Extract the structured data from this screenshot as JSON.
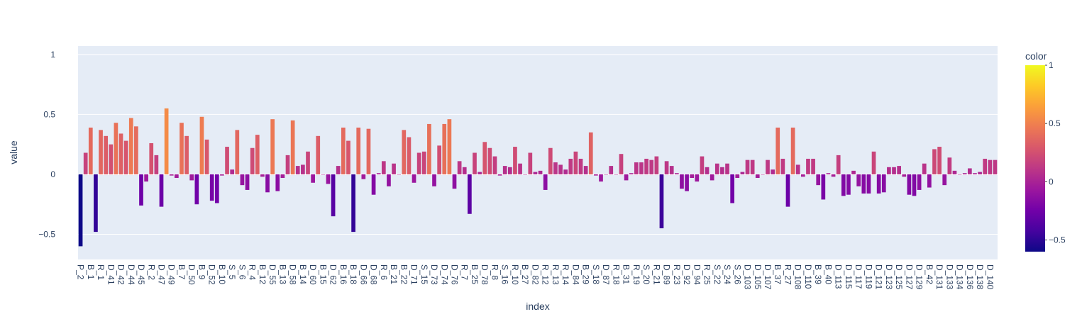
{
  "chart_data": {
    "type": "bar",
    "x_label": "index",
    "y_label": "value",
    "categories": [
      "P_2",
      null,
      "B_1",
      null,
      "R_1",
      null,
      "D_41",
      null,
      "D_42",
      null,
      "D_44",
      null,
      "D_45",
      null,
      "R_2",
      null,
      "D_47",
      null,
      "D_49",
      null,
      "B_7",
      null,
      "D_50",
      null,
      "B_9",
      null,
      "D_52",
      null,
      "B_10",
      null,
      "S_5",
      null,
      "S_6",
      null,
      "R_4",
      null,
      "B_12",
      null,
      "D_55",
      null,
      "B_13",
      null,
      "D_58",
      null,
      "B_14",
      null,
      "D_60",
      null,
      "B_15",
      null,
      "D_62",
      null,
      "B_16",
      null,
      "B_18",
      null,
      "D_66",
      null,
      "D_68",
      null,
      "R_6",
      null,
      "B_21",
      null,
      "B_22",
      null,
      "D_71",
      null,
      "S_15",
      null,
      "D_73",
      null,
      "D_74",
      null,
      "D_76",
      null,
      "R_7",
      null,
      "B_25",
      null,
      "D_78",
      null,
      "R_8",
      null,
      "S_16",
      null,
      "R_10",
      null,
      "B_27",
      null,
      "D_82",
      null,
      "R_12",
      null,
      "R_13",
      null,
      "R_14",
      null,
      "D_84",
      null,
      "B_29",
      null,
      "S_18",
      null,
      "D_87",
      null,
      "R_18",
      null,
      "B_31",
      null,
      "R_19",
      null,
      "S_20",
      null,
      "R_21",
      null,
      "D_89",
      null,
      "R_23",
      null,
      "D_92",
      null,
      "D_94",
      null,
      "R_25",
      null,
      "S_22",
      null,
      "S_24",
      null,
      "S_26",
      null,
      "D_103",
      null,
      "D_105",
      null,
      "D_107",
      null,
      "B_37",
      null,
      "R_27",
      null,
      "D_108",
      null,
      "D_110",
      null,
      "B_39",
      null,
      "B_40",
      null,
      "D_113",
      null,
      "D_115",
      null,
      "D_117",
      null,
      "D_119",
      null,
      "D_121",
      null,
      "D_123",
      null,
      "D_125",
      null,
      "D_127",
      null,
      "D_129",
      null,
      "B_42",
      null,
      "D_131",
      null,
      "D_133",
      null,
      "D_134",
      null,
      "D_136",
      null,
      "D_138",
      null,
      "D_140",
      null
    ],
    "values": [
      -0.6,
      0.18,
      0.39,
      -0.48,
      0.37,
      0.32,
      0.25,
      0.43,
      0.34,
      0.28,
      0.47,
      0.4,
      -0.26,
      -0.06,
      0.26,
      0.16,
      -0.27,
      0.55,
      -0.01,
      -0.03,
      0.43,
      0.32,
      -0.05,
      -0.25,
      0.48,
      0.29,
      -0.22,
      -0.24,
      -0.01,
      0.23,
      0.04,
      0.37,
      -0.09,
      -0.13,
      0.22,
      0.33,
      -0.02,
      -0.15,
      0.46,
      -0.14,
      -0.03,
      0.16,
      0.45,
      0.07,
      0.08,
      0.19,
      -0.07,
      0.32,
      0.0,
      -0.08,
      -0.35,
      0.07,
      0.39,
      0.28,
      -0.48,
      0.39,
      -0.04,
      0.38,
      -0.17,
      0.01,
      0.11,
      -0.1,
      0.09,
      0.0,
      0.37,
      0.31,
      -0.07,
      0.18,
      0.19,
      0.42,
      -0.1,
      0.24,
      0.42,
      0.46,
      -0.12,
      0.11,
      0.06,
      -0.33,
      0.18,
      0.02,
      0.27,
      0.22,
      0.15,
      -0.01,
      0.07,
      0.06,
      0.23,
      0.09,
      0.0,
      0.18,
      0.02,
      0.03,
      -0.13,
      0.22,
      0.1,
      0.08,
      0.04,
      0.13,
      0.19,
      0.13,
      0.07,
      0.35,
      -0.01,
      -0.06,
      0.0,
      0.07,
      0.0,
      0.17,
      -0.05,
      0.01,
      0.1,
      0.1,
      0.13,
      0.12,
      0.15,
      -0.45,
      0.11,
      0.07,
      0.01,
      -0.12,
      -0.14,
      -0.03,
      -0.06,
      0.15,
      0.06,
      -0.05,
      0.09,
      0.06,
      0.09,
      -0.24,
      -0.03,
      0.02,
      0.12,
      0.12,
      -0.03,
      0.0,
      0.12,
      0.04,
      0.39,
      0.13,
      -0.27,
      0.39,
      0.08,
      -0.02,
      0.13,
      0.13,
      -0.09,
      -0.21,
      0.01,
      -0.02,
      0.16,
      -0.18,
      -0.17,
      0.03,
      -0.1,
      -0.16,
      -0.16,
      0.19,
      -0.16,
      -0.15,
      0.06,
      0.06,
      0.07,
      -0.02,
      -0.17,
      -0.18,
      -0.13,
      0.09,
      -0.11,
      0.21,
      0.23,
      -0.09,
      0.14,
      0.03,
      0.0,
      0.01,
      0.05,
      0.01,
      0.02,
      0.13,
      0.12,
      0.12
    ],
    "ylim": [
      -0.71,
      1.07
    ],
    "yticks": [
      {
        "value": -0.5,
        "label": "−0.5"
      },
      0,
      0.5,
      1
    ],
    "grid": true,
    "colorbar_title": "color",
    "clim": [
      -0.6,
      1
    ],
    "cticks": [
      {
        "value": -0.5,
        "label": "−0.5"
      },
      0,
      0.5,
      1
    ],
    "colorscale": [
      "#0d0887",
      "#46039f",
      "#7201a8",
      "#9c179e",
      "#bd3786",
      "#d8576b",
      "#ed7953",
      "#fb9f3a",
      "#fdca26",
      "#f0f921"
    ]
  }
}
